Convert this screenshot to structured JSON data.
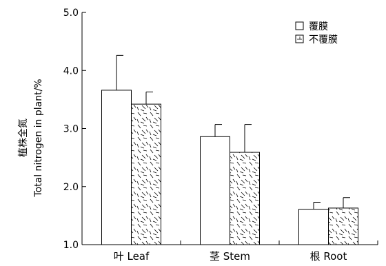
{
  "chart_data": {
    "type": "bar",
    "ylabel_cn": "植株全氮",
    "ylabel_en": "Total nitrogen in plant/%",
    "xlabel": "",
    "title": "",
    "categories": [
      "叶 Leaf",
      "茎 Stem",
      "根 Root"
    ],
    "series": [
      {
        "name": "覆膜",
        "values": [
          3.66,
          2.86,
          1.61
        ],
        "errors": [
          0.6,
          0.21,
          0.12
        ],
        "fill": "plain"
      },
      {
        "name": "不覆膜",
        "values": [
          3.42,
          2.59,
          1.63
        ],
        "errors": [
          0.21,
          0.48,
          0.18
        ],
        "fill": "hatched"
      }
    ],
    "ylim": [
      1.0,
      5.0
    ],
    "yticks": [
      "1.0",
      "2.0",
      "3.0",
      "4.0",
      "5.0"
    ],
    "legend_position": "top-right",
    "grid": false
  }
}
